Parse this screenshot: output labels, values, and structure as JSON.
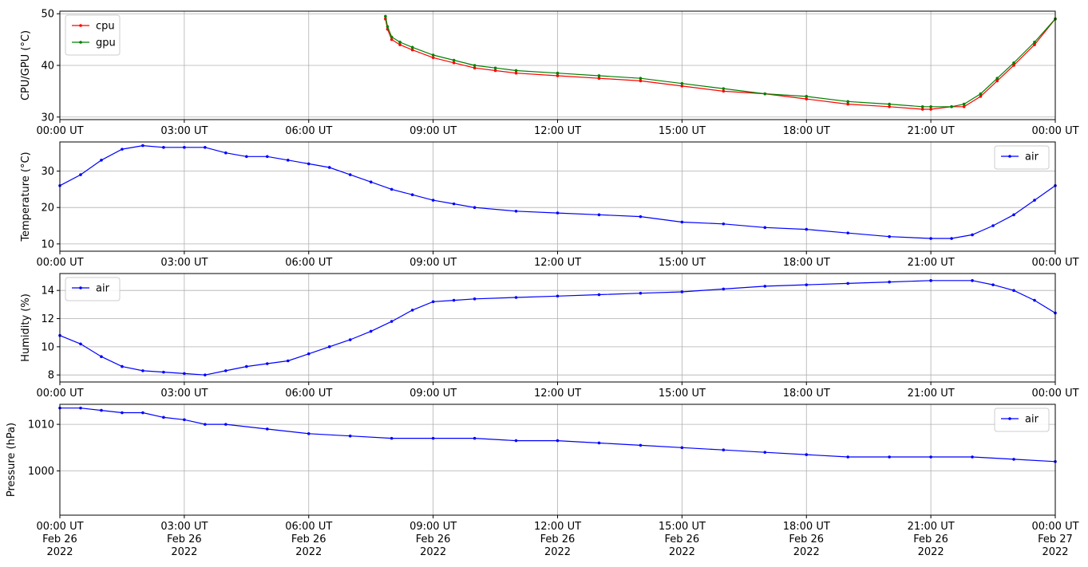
{
  "chart_data": {
    "type": "line",
    "x_axis": {
      "ticks": [
        {
          "hour": 0,
          "time": "00:00 UT",
          "date": "Feb 26",
          "year": "2022"
        },
        {
          "hour": 3,
          "time": "03:00 UT",
          "date": "Feb 26",
          "year": "2022"
        },
        {
          "hour": 6,
          "time": "06:00 UT",
          "date": "Feb 26",
          "year": "2022"
        },
        {
          "hour": 9,
          "time": "09:00 UT",
          "date": "Feb 26",
          "year": "2022"
        },
        {
          "hour": 12,
          "time": "12:00 UT",
          "date": "Feb 26",
          "year": "2022"
        },
        {
          "hour": 15,
          "time": "15:00 UT",
          "date": "Feb 26",
          "year": "2022"
        },
        {
          "hour": 18,
          "time": "18:00 UT",
          "date": "Feb 26",
          "year": "2022"
        },
        {
          "hour": 21,
          "time": "21:00 UT",
          "date": "Feb 26",
          "year": "2022"
        },
        {
          "hour": 24,
          "time": "00:00 UT",
          "date": "Feb 27",
          "year": "2022"
        }
      ],
      "xlim": [
        0,
        24
      ]
    },
    "panels": [
      {
        "ylabel": "CPU/GPU (°C)",
        "ylim": [
          29.5,
          50.5
        ],
        "yticks": [
          30,
          40,
          50
        ],
        "grid": true,
        "legend": "top-left",
        "series": [
          {
            "name": "cpu",
            "color": "#ff0000",
            "x": [
              7.85,
              7.9,
              8.0,
              8.2,
              8.5,
              9.0,
              9.5,
              10.0,
              10.5,
              11.0,
              12.0,
              13.0,
              14.0,
              15.0,
              16.0,
              17.0,
              18.0,
              19.0,
              20.0,
              20.8,
              21.0,
              21.5,
              21.8,
              22.2,
              22.6,
              23.0,
              23.5,
              24.0
            ],
            "y": [
              49,
              47,
              45,
              44,
              43,
              41.5,
              40.5,
              39.5,
              39,
              38.5,
              38,
              37.5,
              37,
              36,
              35,
              34.5,
              33.5,
              32.5,
              32,
              31.5,
              31.5,
              32,
              32,
              34,
              37,
              40,
              44,
              49
            ]
          },
          {
            "name": "gpu",
            "color": "#008000",
            "x": [
              7.85,
              7.9,
              8.0,
              8.2,
              8.5,
              9.0,
              9.5,
              10.0,
              10.5,
              11.0,
              12.0,
              13.0,
              14.0,
              15.0,
              16.0,
              17.0,
              18.0,
              19.0,
              20.0,
              20.8,
              21.0,
              21.5,
              21.8,
              22.2,
              22.6,
              23.0,
              23.5,
              24.0
            ],
            "y": [
              49.5,
              47.5,
              45.5,
              44.5,
              43.5,
              42,
              41,
              40,
              39.5,
              39,
              38.5,
              38,
              37.5,
              36.5,
              35.5,
              34.5,
              34,
              33,
              32.5,
              32,
              32,
              32,
              32.5,
              34.5,
              37.5,
              40.5,
              44.5,
              49
            ]
          }
        ]
      },
      {
        "ylabel": "Temperature (°C)",
        "ylim": [
          8,
          38
        ],
        "yticks": [
          10,
          20,
          30
        ],
        "grid": true,
        "legend": "top-right",
        "series": [
          {
            "name": "air",
            "color": "#0000ff",
            "x": [
              0,
              0.5,
              1.0,
              1.5,
              2.0,
              2.5,
              3.0,
              3.5,
              4.0,
              4.5,
              5.0,
              5.5,
              6.0,
              6.5,
              7.0,
              7.5,
              8.0,
              8.5,
              9.0,
              9.5,
              10.0,
              11.0,
              12.0,
              13.0,
              14.0,
              15.0,
              16.0,
              17.0,
              18.0,
              19.0,
              20.0,
              21.0,
              21.5,
              22.0,
              22.5,
              23.0,
              23.5,
              24.0
            ],
            "y": [
              26,
              29,
              33,
              36,
              37,
              36.5,
              36.5,
              36.5,
              35,
              34,
              34,
              33,
              32,
              31,
              29,
              27,
              25,
              23.5,
              22,
              21,
              20,
              19,
              18.5,
              18,
              17.5,
              16,
              15.5,
              14.5,
              14,
              13,
              12,
              11.5,
              11.5,
              12.5,
              15,
              18,
              22,
              26
            ]
          }
        ]
      },
      {
        "ylabel": "Humidity (%)",
        "ylim": [
          7.5,
          15.2
        ],
        "yticks": [
          8,
          10,
          12,
          14
        ],
        "grid": true,
        "legend": "top-left",
        "series": [
          {
            "name": "air",
            "color": "#0000ff",
            "x": [
              0,
              0.5,
              1.0,
              1.5,
              2.0,
              2.5,
              3.0,
              3.5,
              4.0,
              4.5,
              5.0,
              5.5,
              6.0,
              6.5,
              7.0,
              7.5,
              8.0,
              8.5,
              9.0,
              9.5,
              10.0,
              11.0,
              12.0,
              13.0,
              14.0,
              15.0,
              16.0,
              17.0,
              18.0,
              19.0,
              20.0,
              21.0,
              22.0,
              22.5,
              23.0,
              23.5,
              24.0
            ],
            "y": [
              10.8,
              10.2,
              9.3,
              8.6,
              8.3,
              8.2,
              8.1,
              8.0,
              8.3,
              8.6,
              8.8,
              9.0,
              9.5,
              10.0,
              10.5,
              11.1,
              11.8,
              12.6,
              13.2,
              13.3,
              13.4,
              13.5,
              13.6,
              13.7,
              13.8,
              13.9,
              14.1,
              14.3,
              14.4,
              14.5,
              14.6,
              14.7,
              14.7,
              14.4,
              14.0,
              13.3,
              12.4
            ]
          }
        ]
      },
      {
        "ylabel": "Pressure (hPa)",
        "ylim": [
          990.5,
          1014.3
        ],
        "yticks": [
          1000,
          1010
        ],
        "grid": true,
        "legend": "top-right",
        "series": [
          {
            "name": "air",
            "color": "#0000ff",
            "x": [
              0,
              0.5,
              1.0,
              1.5,
              2.0,
              2.5,
              3.0,
              3.5,
              4.0,
              5.0,
              6.0,
              7.0,
              8.0,
              9.0,
              10.0,
              11.0,
              12.0,
              13.0,
              14.0,
              15.0,
              16.0,
              17.0,
              18.0,
              19.0,
              20.0,
              21.0,
              22.0,
              23.0,
              24.0
            ],
            "y": [
              1013.5,
              1013.5,
              1013,
              1012.5,
              1012.5,
              1011.5,
              1011,
              1010,
              1010,
              1009,
              1008,
              1007.5,
              1007,
              1007,
              1007,
              1006.5,
              1006.5,
              1006,
              1005.5,
              1005,
              1004.5,
              1004,
              1003.5,
              1003,
              1003,
              1003,
              1003,
              1002.5,
              1002
            ]
          }
        ]
      }
    ]
  }
}
